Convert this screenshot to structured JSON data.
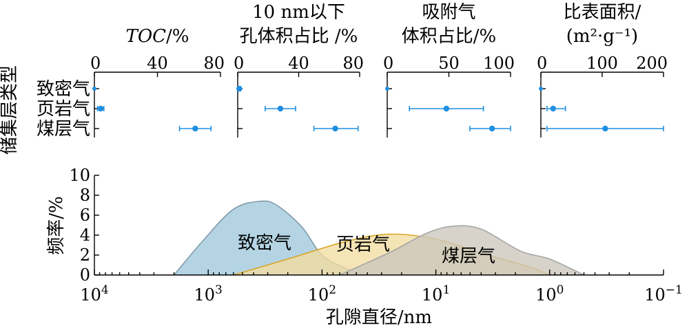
{
  "chart_data": [
    {
      "type": "scatter",
      "title_lines": [
        "",
        "TOC/%"
      ],
      "title_italic": "TOC",
      "xlim": [
        0,
        80
      ],
      "xticks": [
        0,
        40,
        80
      ],
      "y_label": "储集层类型",
      "categories": [
        "致密气",
        "页岩气",
        "煤层气"
      ],
      "points": [
        {
          "category": "致密气",
          "value": 0,
          "low": 0,
          "high": 0
        },
        {
          "category": "页岩气",
          "value": 4,
          "low": 2,
          "high": 6
        },
        {
          "category": "煤层气",
          "value": 64,
          "low": 54,
          "high": 74
        }
      ],
      "color": "#1f8fe0"
    },
    {
      "type": "scatter",
      "title_lines": [
        "10 nm以下",
        "孔体积占比 /%"
      ],
      "xlim": [
        0,
        80
      ],
      "xticks": [
        0,
        40,
        80
      ],
      "categories": [
        "致密气",
        "页岩气",
        "煤层气"
      ],
      "points": [
        {
          "category": "致密气",
          "value": 1,
          "low": 0,
          "high": 2
        },
        {
          "category": "页岩气",
          "value": 28,
          "low": 18,
          "high": 38
        },
        {
          "category": "煤层气",
          "value": 64,
          "low": 50,
          "high": 79
        }
      ],
      "color": "#1f8fe0"
    },
    {
      "type": "scatter",
      "title_lines": [
        "吸附气",
        "体积占比/%"
      ],
      "xlim": [
        0,
        100
      ],
      "xticks": [
        0,
        50,
        100
      ],
      "categories": [
        "致密气",
        "页岩气",
        "煤层气"
      ],
      "points": [
        {
          "category": "致密气",
          "value": 0,
          "low": 0,
          "high": 0
        },
        {
          "category": "页岩气",
          "value": 48,
          "low": 18,
          "high": 78
        },
        {
          "category": "煤层气",
          "value": 85,
          "low": 67,
          "high": 100
        }
      ],
      "color": "#1f8fe0"
    },
    {
      "type": "scatter",
      "title_lines": [
        "比表面积/",
        "(m²·g⁻¹)"
      ],
      "xlim": [
        0,
        200
      ],
      "xticks": [
        0,
        100,
        200
      ],
      "categories": [
        "致密气",
        "页岩气",
        "煤层气"
      ],
      "points": [
        {
          "category": "致密气",
          "value": 0,
          "low": 0,
          "high": 0
        },
        {
          "category": "页岩气",
          "value": 20,
          "low": 10,
          "high": 40
        },
        {
          "category": "煤层气",
          "value": 105,
          "low": 10,
          "high": 200
        }
      ],
      "color": "#1f8fe0"
    },
    {
      "type": "area",
      "xlabel": "孔隙直径/nm",
      "ylabel": "频率/%",
      "x_scale": "log",
      "x_reversed": true,
      "xlim": [
        10000,
        0.1
      ],
      "ylim": [
        0,
        10
      ],
      "yticks": [
        0,
        2,
        4,
        6,
        8,
        10
      ],
      "xtick_base": "10",
      "xtick_exponents": [
        "4",
        "3",
        "2",
        "1",
        "0",
        "−1"
      ],
      "series": [
        {
          "name": "致密气",
          "fill": "#9fc8dc",
          "stroke": "#7f9aa8",
          "points": [
            [
              2000,
              0
            ],
            [
              1100,
              3.5
            ],
            [
              600,
              6.6
            ],
            [
              350,
              7.4
            ],
            [
              250,
              7.0
            ],
            [
              150,
              4.8
            ],
            [
              100,
              2.0
            ],
            [
              60,
              0.6
            ],
            [
              40,
              0
            ]
          ]
        },
        {
          "name": "页岩气",
          "fill": "#f2dca0",
          "stroke": "#d9a628",
          "points": [
            [
              600,
              0
            ],
            [
              200,
              1.6
            ],
            [
              60,
              3.4
            ],
            [
              25,
              4.1
            ],
            [
              10,
              3.6
            ],
            [
              4,
              2.2
            ],
            [
              1.5,
              0.8
            ],
            [
              1,
              0
            ]
          ]
        },
        {
          "name": "煤层气",
          "fill": "#ccc7bd",
          "stroke": "#a5a5a5",
          "points": [
            [
              70,
              0
            ],
            [
              25,
              2.3
            ],
            [
              12,
              4.2
            ],
            [
              7,
              4.9
            ],
            [
              4,
              4.6
            ],
            [
              1.8,
              2.4
            ],
            [
              1,
              1.6
            ],
            [
              0.5,
              0
            ]
          ]
        }
      ]
    }
  ]
}
